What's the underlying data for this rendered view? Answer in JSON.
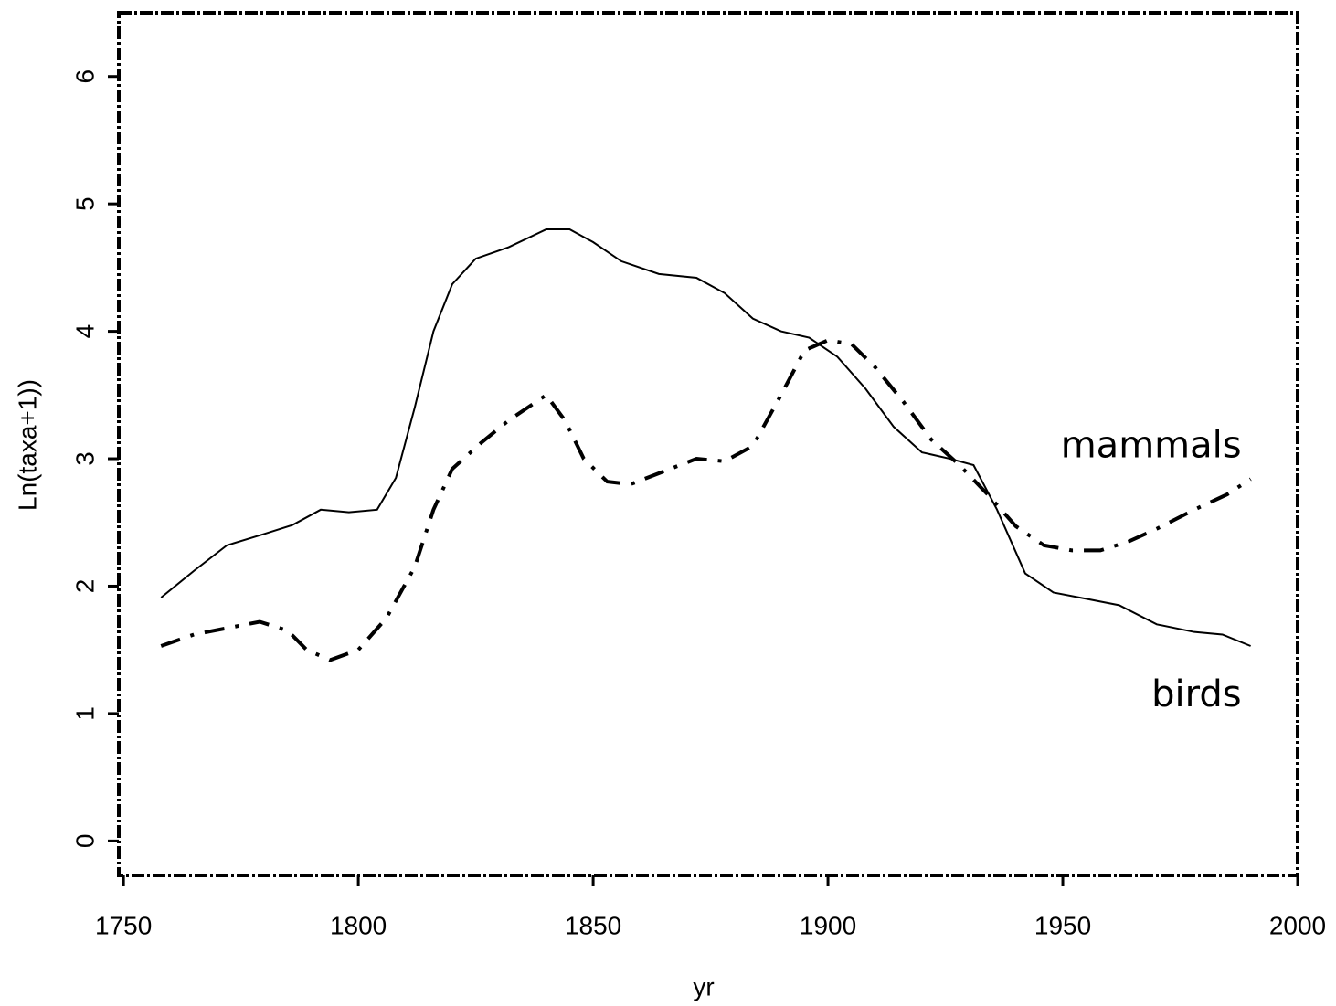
{
  "chart_data": {
    "type": "line",
    "xlabel": "yr",
    "ylabel": "Ln(taxa+1))",
    "xlim": [
      1749,
      2000
    ],
    "ylim": [
      -0.27,
      6.5
    ],
    "xticks": [
      1750,
      1800,
      1850,
      1900,
      1950,
      2000
    ],
    "yticks": [
      0,
      1,
      2,
      3,
      4,
      5,
      6
    ],
    "series": [
      {
        "name": "birds",
        "color": "#000000",
        "style": "solid",
        "x": [
          1758,
          1765,
          1772,
          1780,
          1786,
          1792,
          1798,
          1804,
          1808,
          1812,
          1816,
          1820,
          1825,
          1832,
          1840,
          1845,
          1850,
          1856,
          1864,
          1872,
          1878,
          1884,
          1890,
          1896,
          1902,
          1908,
          1914,
          1920,
          1926,
          1931,
          1936,
          1942,
          1948,
          1955,
          1962,
          1970,
          1978,
          1984,
          1990
        ],
        "values": [
          1.91,
          2.12,
          2.32,
          2.41,
          2.48,
          2.6,
          2.58,
          2.6,
          2.85,
          3.4,
          4.0,
          4.37,
          4.57,
          4.66,
          4.8,
          4.8,
          4.7,
          4.55,
          4.45,
          4.42,
          4.3,
          4.1,
          4.0,
          3.95,
          3.8,
          3.55,
          3.25,
          3.05,
          3.0,
          2.95,
          2.6,
          2.1,
          1.95,
          1.9,
          1.85,
          1.7,
          1.64,
          1.62,
          1.53
        ]
      },
      {
        "name": "mammals",
        "color": "#000000",
        "style": "dashdot",
        "x": [
          1758,
          1765,
          1772,
          1779,
          1785,
          1789,
          1794,
          1800,
          1806,
          1812,
          1816,
          1820,
          1826,
          1832,
          1840,
          1844,
          1848,
          1853,
          1858,
          1865,
          1872,
          1878,
          1884,
          1890,
          1895,
          1900,
          1905,
          1910,
          1916,
          1922,
          1928,
          1934,
          1940,
          1946,
          1952,
          1958,
          1964,
          1970,
          1978,
          1985,
          1990
        ],
        "values": [
          1.53,
          1.62,
          1.67,
          1.72,
          1.65,
          1.5,
          1.42,
          1.5,
          1.75,
          2.15,
          2.6,
          2.92,
          3.12,
          3.3,
          3.5,
          3.3,
          3.0,
          2.82,
          2.8,
          2.9,
          3.0,
          2.98,
          3.1,
          3.5,
          3.85,
          3.93,
          3.9,
          3.72,
          3.45,
          3.15,
          2.95,
          2.72,
          2.47,
          2.32,
          2.28,
          2.28,
          2.35,
          2.45,
          2.6,
          2.72,
          2.84
        ]
      }
    ]
  }
}
